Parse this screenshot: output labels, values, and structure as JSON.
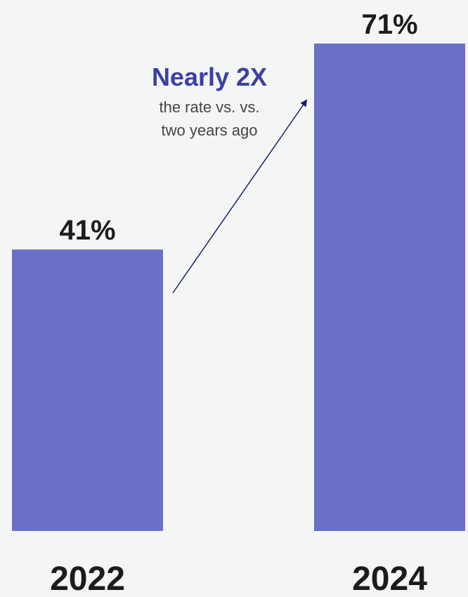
{
  "chart_data": {
    "type": "bar",
    "categories": [
      "2022",
      "2024"
    ],
    "values": [
      41,
      71
    ],
    "value_labels": [
      "41%",
      "71%"
    ],
    "ylim": [
      0,
      71
    ],
    "grid": false,
    "bar_color": "#6a6fc8",
    "annotation": {
      "headline": "Nearly 2X",
      "line1": "the rate vs. vs.",
      "line2": "two years ago",
      "headline_color": "#3c40a4",
      "arrow_color": "#1f1f5e"
    }
  }
}
